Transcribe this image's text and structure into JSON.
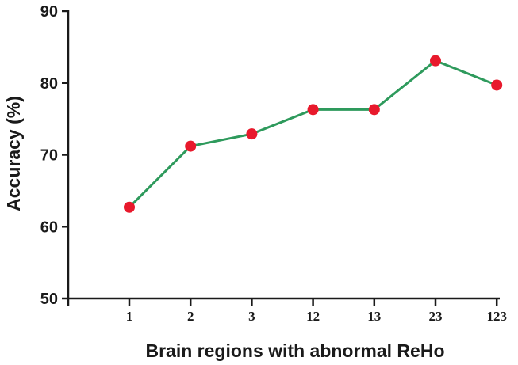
{
  "chart_data": {
    "type": "line",
    "title": "",
    "xlabel": "Brain regions with abnormal ReHo",
    "ylabel": "Accuracy (%)",
    "categories": [
      "1",
      "2",
      "3",
      "12",
      "13",
      "23",
      "123"
    ],
    "series": [
      {
        "values": [
          62.7,
          71.2,
          72.9,
          76.3,
          76.3,
          83.1,
          79.7
        ]
      }
    ],
    "ylim": [
      50,
      90
    ],
    "yticks": [
      "50",
      "60",
      "70",
      "80",
      "90"
    ],
    "grid": false,
    "line_color": "#2e9a5c",
    "marker_color": "#e8192c"
  }
}
